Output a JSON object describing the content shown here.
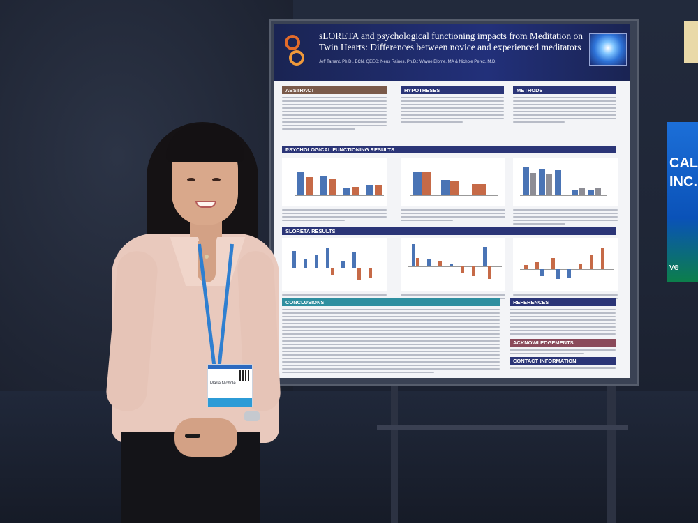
{
  "poster": {
    "title": "sLORETA and psychological functioning impacts from Meditation on Twin Hearts: Differences between novice and experienced meditators",
    "authors": "Jeff Tarrant, Ph.D., BCN, QEEG; Neus Raines, Ph.D.; Wayne Blome, MA & Nichole Perez, M.D.",
    "sections": {
      "abstract": "ABSTRACT",
      "hypotheses": "HYPOTHESES",
      "methods": "METHODS",
      "psych_results": "PSYCHOLOGICAL FUNCTIONING RESULTS",
      "sloreta_results": "SLORETA RESULTS",
      "conclusions": "CONCLUSIONS",
      "references": "REFERENCES",
      "acknowledgements": "ACKNOWLEDGEMENTS",
      "contact": "CONTACT INFORMATION"
    }
  },
  "badge": {
    "name": "Maria Nichole"
  },
  "side_screen": {
    "line1": "CAL",
    "line2": "INC.",
    "line3": "ve"
  }
}
